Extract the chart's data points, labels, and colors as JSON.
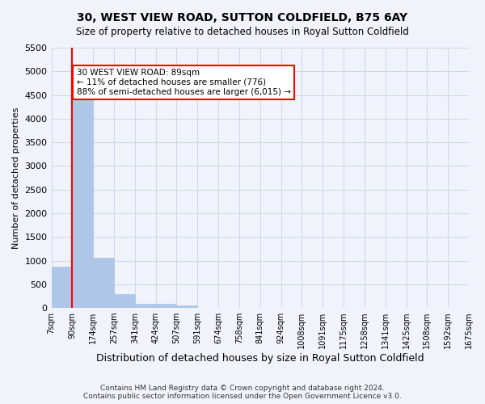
{
  "title1": "30, WEST VIEW ROAD, SUTTON COLDFIELD, B75 6AY",
  "title2": "Size of property relative to detached houses in Royal Sutton Coldfield",
  "xlabel": "Distribution of detached houses by size in Royal Sutton Coldfield",
  "ylabel": "Number of detached properties",
  "footer1": "Contains HM Land Registry data © Crown copyright and database right 2024.",
  "footer2": "Contains public sector information licensed under the Open Government Licence v3.0.",
  "bin_labels": [
    "7sqm",
    "90sqm",
    "174sqm",
    "257sqm",
    "341sqm",
    "424sqm",
    "507sqm",
    "591sqm",
    "674sqm",
    "758sqm",
    "841sqm",
    "924sqm",
    "1008sqm",
    "1091sqm",
    "1175sqm",
    "1258sqm",
    "1341sqm",
    "1425sqm",
    "1508sqm",
    "1592sqm",
    "1675sqm"
  ],
  "bar_values": [
    880,
    4560,
    1060,
    290,
    90,
    80,
    50,
    0,
    0,
    0,
    0,
    0,
    0,
    0,
    0,
    0,
    0,
    0,
    0,
    0
  ],
  "bar_color": "#aec6e8",
  "bar_edge_color": "#aec6e8",
  "grid_color": "#d0d8e8",
  "vline_x": 1,
  "vline_color": "red",
  "annotation_text": "30 WEST VIEW ROAD: 89sqm\n← 11% of detached houses are smaller (776)\n88% of semi-detached houses are larger (6,015) →",
  "annotation_box_color": "white",
  "annotation_box_edge": "red",
  "ylim": [
    0,
    5500
  ],
  "yticks": [
    0,
    500,
    1000,
    1500,
    2000,
    2500,
    3000,
    3500,
    4000,
    4500,
    5000,
    5500
  ],
  "bg_color": "#f0f4fa"
}
